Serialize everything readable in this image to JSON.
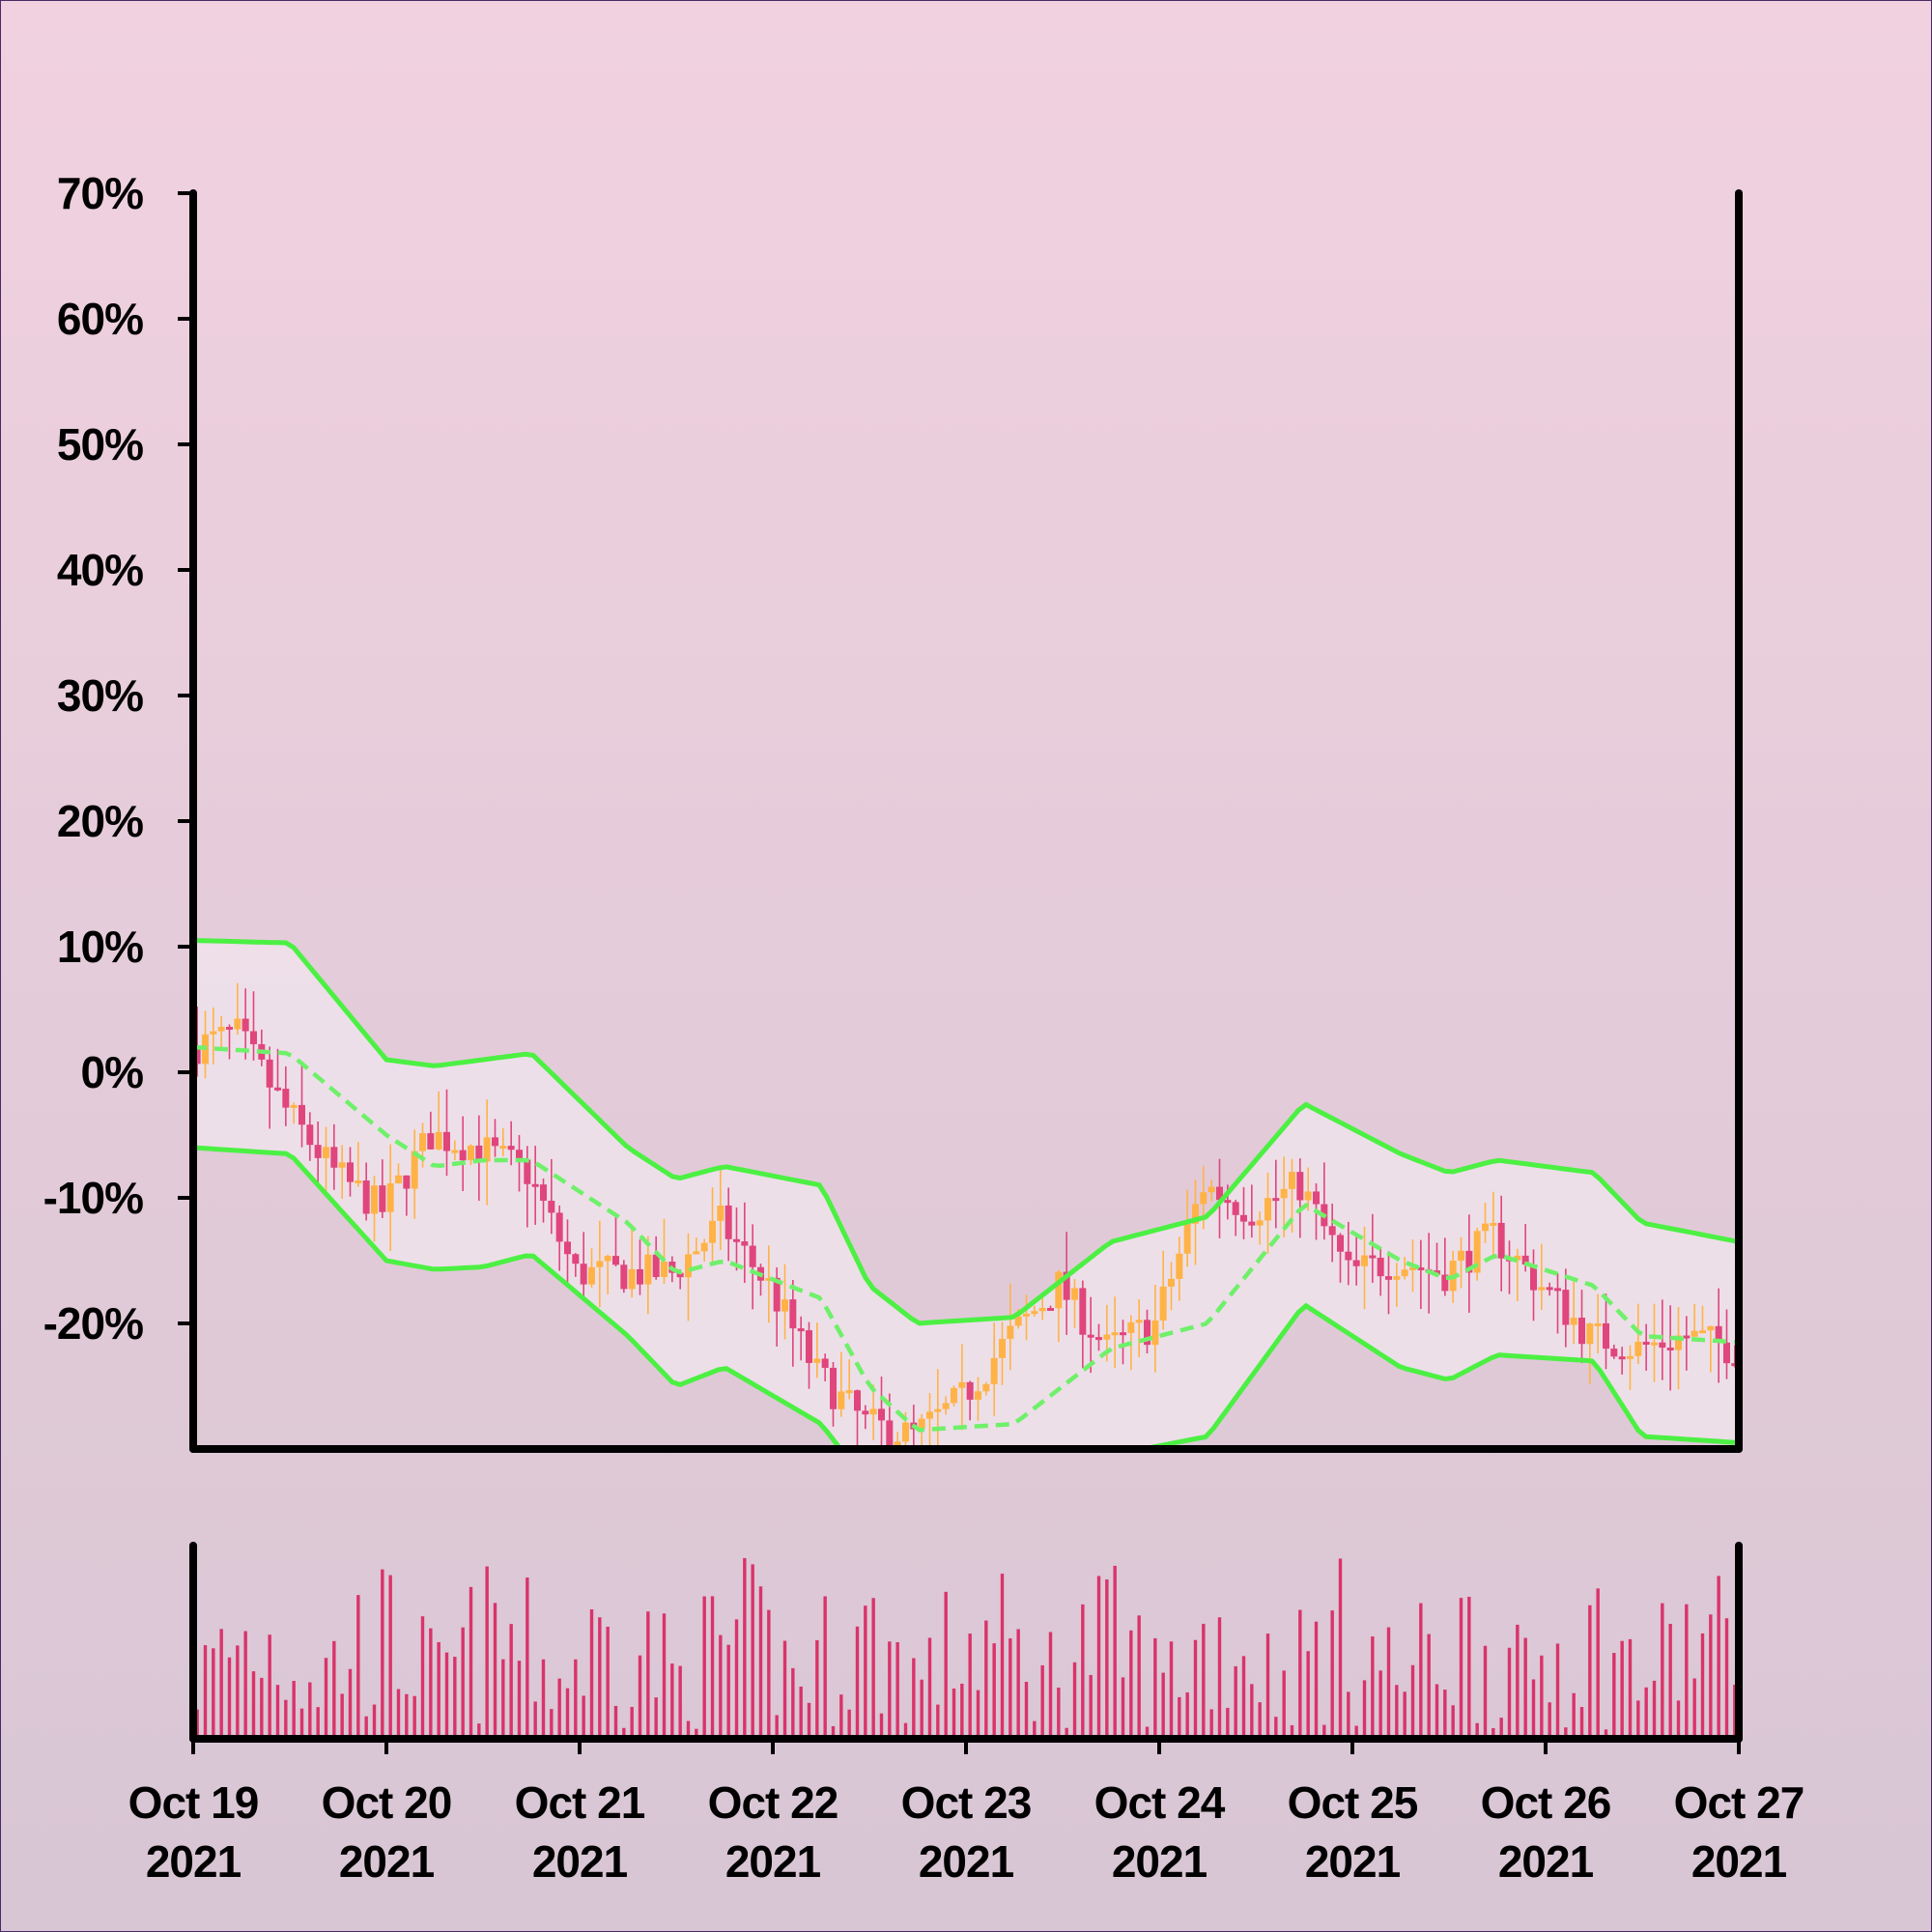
{
  "chart_data": {
    "type": "candlestick",
    "title": "",
    "xlabel": "",
    "ylabel": "",
    "x_range": [
      "2021-10-19 00:00",
      "2021-10-27 00:00"
    ],
    "y_range_percent": [
      -30,
      70
    ],
    "y_ticks": [
      {
        "value": 70,
        "label": "70%"
      },
      {
        "value": 60,
        "label": "60%"
      },
      {
        "value": 50,
        "label": "50%"
      },
      {
        "value": 40,
        "label": "40%"
      },
      {
        "value": 30,
        "label": "30%"
      },
      {
        "value": 20,
        "label": "20%"
      },
      {
        "value": 10,
        "label": "10%"
      },
      {
        "value": 0,
        "label": "0%"
      },
      {
        "value": -10,
        "label": "-10%"
      },
      {
        "value": -20,
        "label": "-20%"
      }
    ],
    "x_ticks": [
      {
        "date": "2021-10-19",
        "line1": "Oct 19",
        "line2": "2021"
      },
      {
        "date": "2021-10-20",
        "line1": "Oct 20",
        "line2": "2021"
      },
      {
        "date": "2021-10-21",
        "line1": "Oct 21",
        "line2": "2021"
      },
      {
        "date": "2021-10-22",
        "line1": "Oct 22",
        "line2": "2021"
      },
      {
        "date": "2021-10-23",
        "line1": "Oct 23",
        "line2": "2021"
      },
      {
        "date": "2021-10-24",
        "line1": "Oct 24",
        "line2": "2021"
      },
      {
        "date": "2021-10-25",
        "line1": "Oct 25",
        "line2": "2021"
      },
      {
        "date": "2021-10-26",
        "line1": "Oct 26",
        "line2": "2021"
      },
      {
        "date": "2021-10-27",
        "line1": "Oct 27",
        "line2": "2021"
      }
    ],
    "price_path_percent": [
      {
        "t": "2021-10-19 00:00",
        "v": 2
      },
      {
        "t": "2021-10-19 06:00",
        "v": 3
      },
      {
        "t": "2021-10-19 12:00",
        "v": -3
      },
      {
        "t": "2021-10-19 18:00",
        "v": -8
      },
      {
        "t": "2021-10-20 00:00",
        "v": -11
      },
      {
        "t": "2021-10-20 06:00",
        "v": -5
      },
      {
        "t": "2021-10-20 12:00",
        "v": -6
      },
      {
        "t": "2021-10-20 18:00",
        "v": -8
      },
      {
        "t": "2021-10-21 00:00",
        "v": -16
      },
      {
        "t": "2021-10-21 12:00",
        "v": -16
      },
      {
        "t": "2021-10-21 18:00",
        "v": -12
      },
      {
        "t": "2021-10-22 00:00",
        "v": -17
      },
      {
        "t": "2021-10-22 06:00",
        "v": -24
      },
      {
        "t": "2021-10-22 12:00",
        "v": -28
      },
      {
        "t": "2021-10-22 18:00",
        "v": -29
      },
      {
        "t": "2021-10-23 00:00",
        "v": -26
      },
      {
        "t": "2021-10-23 06:00",
        "v": -21
      },
      {
        "t": "2021-10-23 12:00",
        "v": -17
      },
      {
        "t": "2021-10-23 18:00",
        "v": -22
      },
      {
        "t": "2021-10-24 00:00",
        "v": -20
      },
      {
        "t": "2021-10-24 06:00",
        "v": -9
      },
      {
        "t": "2021-10-24 12:00",
        "v": -11
      },
      {
        "t": "2021-10-24 18:00",
        "v": -9
      },
      {
        "t": "2021-10-25 00:00",
        "v": -16
      },
      {
        "t": "2021-10-25 06:00",
        "v": -15
      },
      {
        "t": "2021-10-25 12:00",
        "v": -16
      },
      {
        "t": "2021-10-25 18:00",
        "v": -13
      },
      {
        "t": "2021-10-26 00:00",
        "v": -17
      },
      {
        "t": "2021-10-26 06:00",
        "v": -21
      },
      {
        "t": "2021-10-26 12:00",
        "v": -22
      },
      {
        "t": "2021-10-26 18:00",
        "v": -21
      },
      {
        "t": "2021-10-27 00:00",
        "v": -22
      }
    ],
    "bollinger_middle": [
      {
        "t": "2021-10-19 00:00",
        "v": 2
      },
      {
        "t": "2021-10-19 12:00",
        "v": 1.5
      },
      {
        "t": "2021-10-20 00:00",
        "v": -5
      },
      {
        "t": "2021-10-20 06:00",
        "v": -7.5
      },
      {
        "t": "2021-10-20 12:00",
        "v": -7
      },
      {
        "t": "2021-10-20 18:00",
        "v": -7
      },
      {
        "t": "2021-10-21 06:00",
        "v": -12
      },
      {
        "t": "2021-10-21 12:00",
        "v": -16
      },
      {
        "t": "2021-10-21 18:00",
        "v": -15
      },
      {
        "t": "2021-10-22 06:00",
        "v": -18
      },
      {
        "t": "2021-10-22 12:00",
        "v": -25
      },
      {
        "t": "2021-10-22 18:00",
        "v": -28.5
      },
      {
        "t": "2021-10-23 06:00",
        "v": -28
      },
      {
        "t": "2021-10-23 18:00",
        "v": -22
      },
      {
        "t": "2021-10-24 06:00",
        "v": -20
      },
      {
        "t": "2021-10-24 18:00",
        "v": -10.5
      },
      {
        "t": "2021-10-25 06:00",
        "v": -15
      },
      {
        "t": "2021-10-25 12:00",
        "v": -16.5
      },
      {
        "t": "2021-10-25 18:00",
        "v": -14.5
      },
      {
        "t": "2021-10-26 06:00",
        "v": -17
      },
      {
        "t": "2021-10-26 12:00",
        "v": -21
      },
      {
        "t": "2021-10-27 00:00",
        "v": -21.5
      }
    ],
    "bollinger_upper": [
      {
        "t": "2021-10-19 00:00",
        "v": 10.5
      },
      {
        "t": "2021-10-19 12:00",
        "v": 10.3
      },
      {
        "t": "2021-10-20 00:00",
        "v": 1
      },
      {
        "t": "2021-10-20 06:00",
        "v": 0.5
      },
      {
        "t": "2021-10-20 12:00",
        "v": 1
      },
      {
        "t": "2021-10-20 18:00",
        "v": 1.5
      },
      {
        "t": "2021-10-21 06:00",
        "v": -6
      },
      {
        "t": "2021-10-21 12:00",
        "v": -8.5
      },
      {
        "t": "2021-10-21 18:00",
        "v": -7.5
      },
      {
        "t": "2021-10-22 06:00",
        "v": -9
      },
      {
        "t": "2021-10-22 12:00",
        "v": -17
      },
      {
        "t": "2021-10-22 18:00",
        "v": -20
      },
      {
        "t": "2021-10-23 06:00",
        "v": -19.5
      },
      {
        "t": "2021-10-23 18:00",
        "v": -13.5
      },
      {
        "t": "2021-10-24 06:00",
        "v": -11.5
      },
      {
        "t": "2021-10-24 18:00",
        "v": -2.5
      },
      {
        "t": "2021-10-25 06:00",
        "v": -6.5
      },
      {
        "t": "2021-10-25 12:00",
        "v": -8
      },
      {
        "t": "2021-10-25 18:00",
        "v": -7
      },
      {
        "t": "2021-10-26 06:00",
        "v": -8
      },
      {
        "t": "2021-10-26 12:00",
        "v": -12
      },
      {
        "t": "2021-10-27 00:00",
        "v": -13.5
      }
    ],
    "bollinger_lower": [
      {
        "t": "2021-10-19 00:00",
        "v": -6
      },
      {
        "t": "2021-10-19 12:00",
        "v": -6.5
      },
      {
        "t": "2021-10-20 00:00",
        "v": -15
      },
      {
        "t": "2021-10-20 06:00",
        "v": -15.7
      },
      {
        "t": "2021-10-20 12:00",
        "v": -15.5
      },
      {
        "t": "2021-10-20 18:00",
        "v": -14.5
      },
      {
        "t": "2021-10-21 06:00",
        "v": -21
      },
      {
        "t": "2021-10-21 12:00",
        "v": -25
      },
      {
        "t": "2021-10-21 18:00",
        "v": -23.5
      },
      {
        "t": "2021-10-22 06:00",
        "v": -28
      },
      {
        "t": "2021-10-22 12:00",
        "v": -33
      },
      {
        "t": "2021-10-22 18:00",
        "v": -37
      },
      {
        "t": "2021-10-23 06:00",
        "v": -36.5
      },
      {
        "t": "2021-10-23 18:00",
        "v": -30.5
      },
      {
        "t": "2021-10-24 06:00",
        "v": -29
      },
      {
        "t": "2021-10-24 18:00",
        "v": -18.5
      },
      {
        "t": "2021-10-25 06:00",
        "v": -23.5
      },
      {
        "t": "2021-10-25 12:00",
        "v": -24.5
      },
      {
        "t": "2021-10-25 18:00",
        "v": -22.5
      },
      {
        "t": "2021-10-26 06:00",
        "v": -23
      },
      {
        "t": "2021-10-26 12:00",
        "v": -29
      },
      {
        "t": "2021-10-27 00:00",
        "v": -29.5
      }
    ],
    "candle_interval_hours": 1,
    "volume_present": true,
    "grid": false,
    "legend": "none",
    "colors": {
      "background_top": "#f1d1df",
      "background_bottom": "#d8c6d4",
      "up_candle": "#ffb347",
      "down_candle": "#e0457b",
      "bollinger_band": "#4cf043",
      "band_fill": "#f0e6ee",
      "volume_bar": "#d9336a",
      "axes": "#000000"
    }
  }
}
